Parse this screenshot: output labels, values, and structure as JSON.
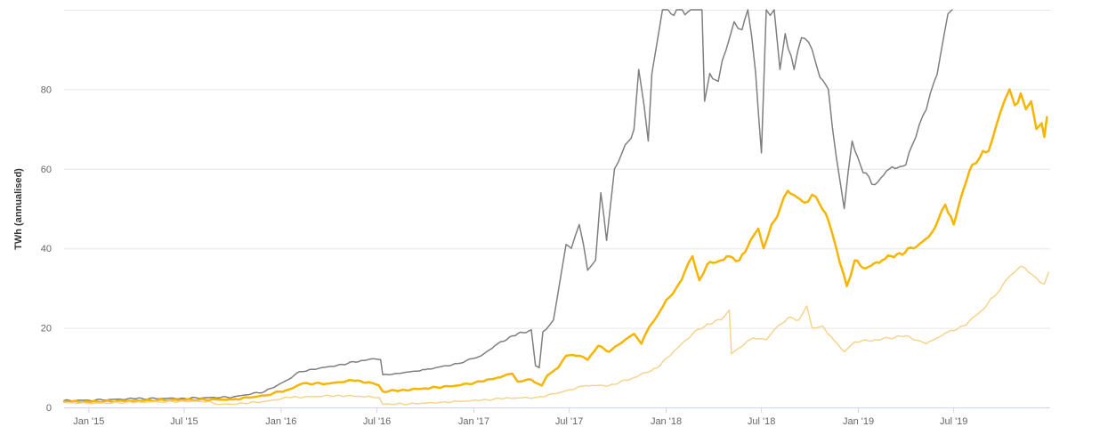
{
  "chart_data": {
    "type": "line",
    "title": "",
    "xlabel": "",
    "ylabel": "TWh (annualised)",
    "ylim": [
      0,
      100
    ],
    "xlim": [
      "2014-11-15",
      "2019-12-31"
    ],
    "yticks": [
      0,
      20,
      40,
      60,
      80
    ],
    "xticks": [
      {
        "date": "2015-01-01",
        "label": "Jan '15"
      },
      {
        "date": "2015-07-01",
        "label": "Jul '15"
      },
      {
        "date": "2016-01-01",
        "label": "Jan '16"
      },
      {
        "date": "2016-07-01",
        "label": "Jul '16"
      },
      {
        "date": "2017-01-01",
        "label": "Jan '17"
      },
      {
        "date": "2017-07-01",
        "label": "Jul '17"
      },
      {
        "date": "2018-01-01",
        "label": "Jan '18"
      },
      {
        "date": "2018-07-01",
        "label": "Jul '18"
      },
      {
        "date": "2019-01-01",
        "label": "Jan '19"
      },
      {
        "date": "2019-07-01",
        "label": "Jul '19"
      }
    ],
    "grid": true,
    "legend": "none",
    "series": [
      {
        "color": "#7f7f7f",
        "width": 1.5,
        "points": [
          [
            "2014-11-15",
            1.7
          ],
          [
            "2015-01-01",
            1.8
          ],
          [
            "2015-04-01",
            2.2
          ],
          [
            "2015-07-01",
            2.3
          ],
          [
            "2015-10-01",
            2.6
          ],
          [
            "2015-12-01",
            4.0
          ],
          [
            "2016-01-15",
            7.0
          ],
          [
            "2016-02-05",
            9.0
          ],
          [
            "2016-03-01",
            9.6
          ],
          [
            "2016-04-15",
            10.5
          ],
          [
            "2016-06-01",
            11.8
          ],
          [
            "2016-06-28",
            12.2
          ],
          [
            "2016-07-08",
            12.0
          ],
          [
            "2016-07-12",
            8.2
          ],
          [
            "2016-08-15",
            8.6
          ],
          [
            "2016-10-01",
            9.5
          ],
          [
            "2016-12-01",
            11.0
          ],
          [
            "2017-01-15",
            13.0
          ],
          [
            "2017-02-15",
            16.0
          ],
          [
            "2017-03-15",
            18.0
          ],
          [
            "2017-04-20",
            19.5
          ],
          [
            "2017-04-28",
            10.5
          ],
          [
            "2017-05-05",
            10.0
          ],
          [
            "2017-05-12",
            19.0
          ],
          [
            "2017-06-01",
            22.0
          ],
          [
            "2017-06-15",
            33.0
          ],
          [
            "2017-06-25",
            41.0
          ],
          [
            "2017-07-05",
            40.0
          ],
          [
            "2017-07-20",
            46.0
          ],
          [
            "2017-07-28",
            41.0
          ],
          [
            "2017-08-05",
            34.5
          ],
          [
            "2017-08-20",
            37.0
          ],
          [
            "2017-08-30",
            54.0
          ],
          [
            "2017-09-10",
            42.0
          ],
          [
            "2017-09-25",
            60.0
          ],
          [
            "2017-10-15",
            66.0
          ],
          [
            "2017-11-01",
            70.0
          ],
          [
            "2017-11-10",
            85.0
          ],
          [
            "2017-11-20",
            76.0
          ],
          [
            "2017-11-28",
            67.0
          ],
          [
            "2017-12-05",
            84.0
          ],
          [
            "2017-12-15",
            92.0
          ],
          [
            "2017-12-25",
            100.0
          ],
          [
            "2018-03-10",
            100.0
          ],
          [
            "2018-03-15",
            77.0
          ],
          [
            "2018-03-25",
            84.0
          ],
          [
            "2018-04-10",
            82.0
          ],
          [
            "2018-04-25",
            90.0
          ],
          [
            "2018-05-10",
            97.0
          ],
          [
            "2018-05-25",
            95.0
          ],
          [
            "2018-06-05",
            100.0
          ],
          [
            "2018-06-20",
            84.0
          ],
          [
            "2018-07-01",
            64.0
          ],
          [
            "2018-07-10",
            100.0
          ],
          [
            "2018-07-25",
            100.0
          ],
          [
            "2018-08-05",
            85.0
          ],
          [
            "2018-08-15",
            94.0
          ],
          [
            "2018-09-01",
            85.0
          ],
          [
            "2018-09-15",
            93.0
          ],
          [
            "2018-10-05",
            90.0
          ],
          [
            "2018-10-20",
            83.0
          ],
          [
            "2018-11-05",
            80.0
          ],
          [
            "2018-11-20",
            63.0
          ],
          [
            "2018-12-05",
            50.0
          ],
          [
            "2018-12-20",
            67.0
          ],
          [
            "2019-01-10",
            59.0
          ],
          [
            "2019-02-01",
            56.0
          ],
          [
            "2019-03-01",
            60.0
          ],
          [
            "2019-04-01",
            61.0
          ],
          [
            "2019-04-20",
            68.0
          ],
          [
            "2019-05-10",
            75.0
          ],
          [
            "2019-05-25",
            82.0
          ],
          [
            "2019-06-05",
            88.0
          ],
          [
            "2019-06-20",
            99.0
          ],
          [
            "2019-06-28",
            100.0
          ]
        ]
      },
      {
        "color": "#f7b500",
        "width": 2.5,
        "points": [
          [
            "2014-11-15",
            1.5
          ],
          [
            "2015-01-01",
            1.4
          ],
          [
            "2015-04-01",
            1.7
          ],
          [
            "2015-07-01",
            1.9
          ],
          [
            "2015-10-01",
            2.0
          ],
          [
            "2015-12-01",
            3.0
          ],
          [
            "2016-01-15",
            4.5
          ],
          [
            "2016-02-10",
            6.0
          ],
          [
            "2016-04-01",
            6.0
          ],
          [
            "2016-05-15",
            6.8
          ],
          [
            "2016-06-20",
            6.2
          ],
          [
            "2016-07-05",
            5.5
          ],
          [
            "2016-07-12",
            4.0
          ],
          [
            "2016-08-15",
            4.3
          ],
          [
            "2016-10-01",
            4.8
          ],
          [
            "2016-12-01",
            5.5
          ],
          [
            "2017-01-15",
            6.5
          ],
          [
            "2017-02-15",
            7.5
          ],
          [
            "2017-03-15",
            8.5
          ],
          [
            "2017-03-25",
            6.5
          ],
          [
            "2017-04-20",
            7.0
          ],
          [
            "2017-05-10",
            5.5
          ],
          [
            "2017-05-20",
            8.0
          ],
          [
            "2017-06-10",
            10.0
          ],
          [
            "2017-06-25",
            13.0
          ],
          [
            "2017-07-20",
            13.0
          ],
          [
            "2017-08-05",
            12.0
          ],
          [
            "2017-08-25",
            15.5
          ],
          [
            "2017-09-15",
            14.0
          ],
          [
            "2017-10-15",
            17.0
          ],
          [
            "2017-11-01",
            18.5
          ],
          [
            "2017-11-15",
            16.0
          ],
          [
            "2017-12-01",
            20.5
          ],
          [
            "2017-12-15",
            23.0
          ],
          [
            "2018-01-01",
            27.0
          ],
          [
            "2018-01-20",
            30.0
          ],
          [
            "2018-02-05",
            34.0
          ],
          [
            "2018-02-20",
            38.0
          ],
          [
            "2018-03-05",
            32.0
          ],
          [
            "2018-03-20",
            36.0
          ],
          [
            "2018-04-15",
            37.0
          ],
          [
            "2018-05-01",
            38.0
          ],
          [
            "2018-05-20",
            37.0
          ],
          [
            "2018-06-10",
            42.0
          ],
          [
            "2018-06-25",
            45.0
          ],
          [
            "2018-07-05",
            40.0
          ],
          [
            "2018-07-20",
            46.0
          ],
          [
            "2018-08-05",
            50.0
          ],
          [
            "2018-08-20",
            54.5
          ],
          [
            "2018-09-05",
            53.0
          ],
          [
            "2018-09-20",
            51.5
          ],
          [
            "2018-10-05",
            53.5
          ],
          [
            "2018-10-20",
            51.0
          ],
          [
            "2018-11-05",
            47.0
          ],
          [
            "2018-11-20",
            40.0
          ],
          [
            "2018-12-10",
            30.5
          ],
          [
            "2018-12-25",
            37.0
          ],
          [
            "2019-01-15",
            35.0
          ],
          [
            "2019-02-15",
            37.0
          ],
          [
            "2019-03-15",
            38.5
          ],
          [
            "2019-04-15",
            40.0
          ],
          [
            "2019-05-15",
            43.0
          ],
          [
            "2019-06-01",
            47.0
          ],
          [
            "2019-06-15",
            51.0
          ],
          [
            "2019-07-01",
            46.0
          ],
          [
            "2019-07-20",
            55.0
          ],
          [
            "2019-08-05",
            61.0
          ],
          [
            "2019-08-20",
            63.0
          ],
          [
            "2019-09-05",
            64.5
          ],
          [
            "2019-09-20",
            71.0
          ],
          [
            "2019-10-05",
            77.0
          ],
          [
            "2019-10-15",
            80.0
          ],
          [
            "2019-10-25",
            76.0
          ],
          [
            "2019-11-05",
            79.0
          ],
          [
            "2019-11-15",
            75.0
          ],
          [
            "2019-11-25",
            77.0
          ],
          [
            "2019-12-05",
            70.0
          ],
          [
            "2019-12-15",
            71.5
          ],
          [
            "2019-12-20",
            68.0
          ],
          [
            "2019-12-25",
            73.0
          ]
        ]
      },
      {
        "color": "#f6d48e",
        "width": 1.5,
        "points": [
          [
            "2014-11-15",
            1.2
          ],
          [
            "2015-01-01",
            1.0
          ],
          [
            "2015-04-01",
            1.3
          ],
          [
            "2015-07-01",
            1.5
          ],
          [
            "2015-08-20",
            1.5
          ],
          [
            "2015-09-01",
            0.8
          ],
          [
            "2015-10-01",
            0.8
          ],
          [
            "2015-12-01",
            1.5
          ],
          [
            "2016-01-15",
            2.5
          ],
          [
            "2016-03-01",
            2.7
          ],
          [
            "2016-04-15",
            3.0
          ],
          [
            "2016-06-01",
            2.8
          ],
          [
            "2016-06-20",
            2.7
          ],
          [
            "2016-07-05",
            2.5
          ],
          [
            "2016-07-12",
            0.8
          ],
          [
            "2016-09-01",
            0.9
          ],
          [
            "2016-11-01",
            1.3
          ],
          [
            "2017-01-15",
            1.8
          ],
          [
            "2017-03-01",
            2.3
          ],
          [
            "2017-05-01",
            2.5
          ],
          [
            "2017-06-15",
            3.8
          ],
          [
            "2017-08-01",
            5.5
          ],
          [
            "2017-09-15",
            5.5
          ],
          [
            "2017-11-01",
            7.5
          ],
          [
            "2017-12-15",
            10.0
          ],
          [
            "2018-01-15",
            14.0
          ],
          [
            "2018-02-20",
            18.5
          ],
          [
            "2018-03-20",
            21.0
          ],
          [
            "2018-04-15",
            22.0
          ],
          [
            "2018-05-01",
            24.5
          ],
          [
            "2018-05-05",
            13.5
          ],
          [
            "2018-05-20",
            15.0
          ],
          [
            "2018-06-15",
            17.5
          ],
          [
            "2018-07-10",
            17.0
          ],
          [
            "2018-07-25",
            19.5
          ],
          [
            "2018-08-20",
            22.5
          ],
          [
            "2018-09-10",
            22.0
          ],
          [
            "2018-09-25",
            25.5
          ],
          [
            "2018-10-05",
            20.0
          ],
          [
            "2018-10-25",
            20.5
          ],
          [
            "2018-11-15",
            17.0
          ],
          [
            "2018-12-05",
            14.0
          ],
          [
            "2018-12-25",
            16.5
          ],
          [
            "2019-02-01",
            17.0
          ],
          [
            "2019-04-01",
            18.0
          ],
          [
            "2019-05-10",
            16.0
          ],
          [
            "2019-06-20",
            19.0
          ],
          [
            "2019-07-20",
            20.5
          ],
          [
            "2019-08-20",
            24.0
          ],
          [
            "2019-09-20",
            28.5
          ],
          [
            "2019-10-15",
            33.0
          ],
          [
            "2019-11-05",
            35.5
          ],
          [
            "2019-11-20",
            34.0
          ],
          [
            "2019-12-05",
            32.5
          ],
          [
            "2019-12-20",
            31.0
          ],
          [
            "2019-12-28",
            34.0
          ]
        ]
      }
    ]
  }
}
